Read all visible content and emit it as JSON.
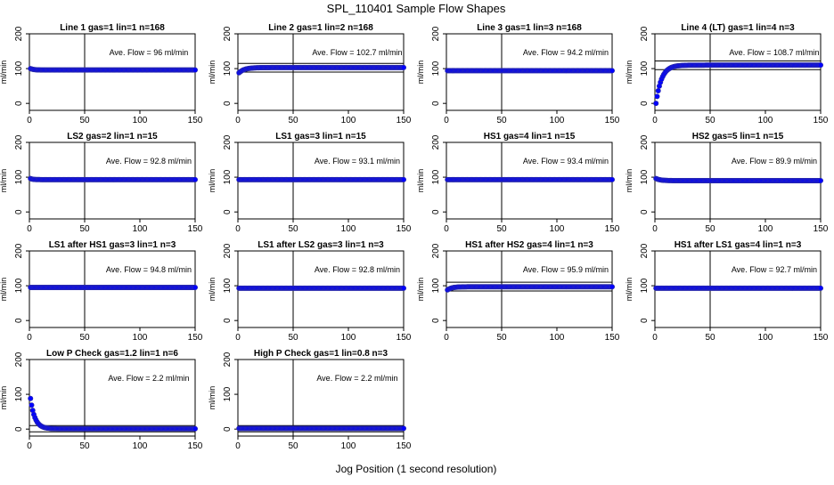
{
  "figure": {
    "title": "SPL_110401  Sample Flow Shapes",
    "xlabel": "Jog Position (1 second resolution)",
    "ylabel": "ml/min",
    "flow_prefix": "Ave. Flow = ",
    "flow_unit": "ml/min",
    "marker_color": "#0000ff",
    "marker_edge_color": "#2a2aa8",
    "axis_color": "#000000"
  },
  "chart_data": [
    {
      "type": "scatter",
      "title": "Line 1 gas=1 lin=1 n=168",
      "ave_flow": "96",
      "shape": "flat",
      "start": 100,
      "end": 96,
      "tau": 3,
      "xlim": [
        0,
        150
      ],
      "ylim": [
        -20,
        200
      ],
      "xticks": [
        0,
        50,
        100,
        150
      ],
      "yticks": [
        0,
        100,
        200
      ],
      "vline_x": 50,
      "hlines": [],
      "row": 0,
      "col": 0
    },
    {
      "type": "scatter",
      "title": "Line 2 gas=1 lin=2 n=168",
      "ave_flow": "102.7",
      "shape": "rise",
      "start": 88,
      "end": 103,
      "tau": 5,
      "xlim": [
        0,
        150
      ],
      "ylim": [
        -20,
        200
      ],
      "xticks": [
        0,
        50,
        100,
        150
      ],
      "yticks": [
        0,
        100,
        200
      ],
      "vline_x": 50,
      "hlines": [
        115,
        90
      ],
      "row": 0,
      "col": 1
    },
    {
      "type": "scatter",
      "title": "Line 3 gas=1 lin=3 n=168",
      "ave_flow": "94.2",
      "shape": "flat",
      "start": 94,
      "end": 94,
      "tau": 1,
      "xlim": [
        0,
        150
      ],
      "ylim": [
        -20,
        200
      ],
      "xticks": [
        0,
        50,
        100,
        150
      ],
      "yticks": [
        0,
        100,
        200
      ],
      "vline_x": 50,
      "hlines": [],
      "row": 0,
      "col": 2
    },
    {
      "type": "scatter",
      "title": "Line 4 (LT) gas=1 lin=4 n=3",
      "ave_flow": "108.7",
      "shape": "rise",
      "start": 0,
      "end": 110,
      "tau": 5,
      "xlim": [
        0,
        150
      ],
      "ylim": [
        -20,
        200
      ],
      "xticks": [
        0,
        50,
        100,
        150
      ],
      "yticks": [
        0,
        100,
        200
      ],
      "vline_x": 50,
      "hlines": [
        122,
        97
      ],
      "row": 0,
      "col": 3
    },
    {
      "type": "scatter",
      "title": "LS2 gas=2 lin=1 n=15",
      "ave_flow": "92.8",
      "shape": "flat",
      "start": 96,
      "end": 93,
      "tau": 2,
      "xlim": [
        0,
        150
      ],
      "ylim": [
        -20,
        200
      ],
      "xticks": [
        0,
        50,
        100,
        150
      ],
      "yticks": [
        0,
        100,
        200
      ],
      "vline_x": 50,
      "hlines": [],
      "row": 1,
      "col": 0
    },
    {
      "type": "scatter",
      "title": "LS1 gas=3 lin=1 n=15",
      "ave_flow": "93.1",
      "shape": "flat",
      "start": 93,
      "end": 93,
      "tau": 1,
      "xlim": [
        0,
        150
      ],
      "ylim": [
        -20,
        200
      ],
      "xticks": [
        0,
        50,
        100,
        150
      ],
      "yticks": [
        0,
        100,
        200
      ],
      "vline_x": 50,
      "hlines": [],
      "row": 1,
      "col": 1
    },
    {
      "type": "scatter",
      "title": "HS1 gas=4 lin=1 n=15",
      "ave_flow": "93.4",
      "shape": "flat",
      "start": 93,
      "end": 93,
      "tau": 1,
      "xlim": [
        0,
        150
      ],
      "ylim": [
        -20,
        200
      ],
      "xticks": [
        0,
        50,
        100,
        150
      ],
      "yticks": [
        0,
        100,
        200
      ],
      "vline_x": 50,
      "hlines": [],
      "row": 1,
      "col": 2
    },
    {
      "type": "scatter",
      "title": "HS2 gas=5 lin=1 n=15",
      "ave_flow": "89.9",
      "shape": "flat",
      "start": 96,
      "end": 90,
      "tau": 4,
      "xlim": [
        0,
        150
      ],
      "ylim": [
        -20,
        200
      ],
      "xticks": [
        0,
        50,
        100,
        150
      ],
      "yticks": [
        0,
        100,
        200
      ],
      "vline_x": 50,
      "hlines": [],
      "row": 1,
      "col": 3
    },
    {
      "type": "scatter",
      "title": "LS1 after HS1 gas=3 lin=1 n=3",
      "ave_flow": "94.8",
      "shape": "flat",
      "start": 95,
      "end": 95,
      "tau": 1,
      "xlim": [
        0,
        150
      ],
      "ylim": [
        -20,
        200
      ],
      "xticks": [
        0,
        50,
        100,
        150
      ],
      "yticks": [
        0,
        100,
        200
      ],
      "vline_x": 50,
      "hlines": [],
      "row": 2,
      "col": 0
    },
    {
      "type": "scatter",
      "title": "LS1 after LS2 gas=3 lin=1 n=3",
      "ave_flow": "92.8",
      "shape": "flat",
      "start": 93,
      "end": 93,
      "tau": 1,
      "xlim": [
        0,
        150
      ],
      "ylim": [
        -20,
        200
      ],
      "xticks": [
        0,
        50,
        100,
        150
      ],
      "yticks": [
        0,
        100,
        200
      ],
      "vline_x": 50,
      "hlines": [],
      "row": 2,
      "col": 1
    },
    {
      "type": "scatter",
      "title": "HS1 after HS2 gas=4 lin=1 n=3",
      "ave_flow": "95.9",
      "shape": "rise",
      "start": 88,
      "end": 97,
      "tau": 4,
      "xlim": [
        0,
        150
      ],
      "ylim": [
        -20,
        200
      ],
      "xticks": [
        0,
        50,
        100,
        150
      ],
      "yticks": [
        0,
        100,
        200
      ],
      "vline_x": 50,
      "hlines": [
        110,
        85
      ],
      "row": 2,
      "col": 2
    },
    {
      "type": "scatter",
      "title": "HS1 after LS1 gas=4 lin=1 n=3",
      "ave_flow": "92.7",
      "shape": "flat",
      "start": 93,
      "end": 93,
      "tau": 1,
      "xlim": [
        0,
        150
      ],
      "ylim": [
        -20,
        200
      ],
      "xticks": [
        0,
        50,
        100,
        150
      ],
      "yticks": [
        0,
        100,
        200
      ],
      "vline_x": 50,
      "hlines": [],
      "row": 2,
      "col": 3
    },
    {
      "type": "scatter",
      "title": "Low P Check gas=1.2 lin=1 n=6",
      "ave_flow": "2.2",
      "shape": "decay",
      "start": 88,
      "end": 1,
      "tau": 4,
      "xlim": [
        0,
        150
      ],
      "ylim": [
        -20,
        200
      ],
      "xticks": [
        0,
        50,
        100,
        150
      ],
      "yticks": [
        0,
        100,
        200
      ],
      "vline_x": 50,
      "hlines": [
        10,
        -8
      ],
      "row": 3,
      "col": 0
    },
    {
      "type": "scatter",
      "title": "High P Check gas=1 lin=0.8 n=3",
      "ave_flow": "2.2",
      "shape": "flat",
      "start": 2,
      "end": 2,
      "tau": 1,
      "xlim": [
        0,
        150
      ],
      "ylim": [
        -20,
        200
      ],
      "xticks": [
        0,
        50,
        100,
        150
      ],
      "yticks": [
        0,
        100,
        200
      ],
      "vline_x": 50,
      "hlines": [
        10,
        -8
      ],
      "row": 3,
      "col": 1
    }
  ]
}
